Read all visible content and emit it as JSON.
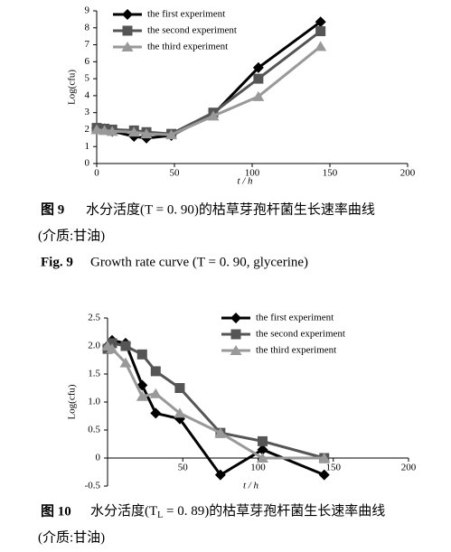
{
  "chart_data": [
    {
      "type": "line",
      "ylabel": "Log(cfu)",
      "xlabel": "t / h",
      "x": [
        0,
        5,
        10,
        24,
        32,
        48,
        75,
        104,
        144
      ],
      "series": [
        {
          "name": "the first experiment",
          "color": "#000000",
          "marker": "diamond",
          "values": [
            2.1,
            2.05,
            1.9,
            1.6,
            1.5,
            1.65,
            2.9,
            5.65,
            8.35
          ]
        },
        {
          "name": "the second experiment",
          "color": "#555555",
          "marker": "square",
          "values": [
            2.1,
            2.05,
            2.0,
            1.95,
            1.85,
            1.75,
            3.0,
            5.0,
            7.8
          ]
        },
        {
          "name": "the third experiment",
          "color": "#999999",
          "marker": "triangle",
          "values": [
            2.0,
            1.95,
            1.9,
            1.85,
            1.75,
            1.7,
            2.8,
            3.95,
            6.9
          ]
        }
      ],
      "xlim": [
        0,
        200
      ],
      "xticks": [
        0,
        50,
        100,
        150,
        200
      ],
      "ylim": [
        0,
        9
      ],
      "yticks": [
        0,
        1,
        2,
        3,
        4,
        5,
        6,
        7,
        8,
        9
      ],
      "legend": "upper left"
    },
    {
      "type": "line",
      "ylabel": "Log(cfu)",
      "xlabel": "t / h",
      "x": [
        0,
        3,
        12,
        23,
        32,
        48,
        75,
        103,
        144
      ],
      "series": [
        {
          "name": "the first experiment",
          "color": "#000000",
          "marker": "diamond",
          "values": [
            2.0,
            2.1,
            2.05,
            1.3,
            0.8,
            0.7,
            -0.3,
            0.15,
            -0.3
          ]
        },
        {
          "name": "the second experiment",
          "color": "#555555",
          "marker": "square",
          "values": [
            1.95,
            2.05,
            2.0,
            1.85,
            1.55,
            1.25,
            0.45,
            0.3,
            0
          ]
        },
        {
          "name": "the third experiment",
          "color": "#999999",
          "marker": "triangle",
          "values": [
            2.0,
            1.95,
            1.7,
            1.1,
            1.15,
            0.8,
            0.45,
            0,
            0
          ]
        }
      ],
      "xlim": [
        0,
        200
      ],
      "xticks": [
        50,
        100,
        150,
        200
      ],
      "ylim": [
        -0.5,
        2.5
      ],
      "yticks": [
        -0.5,
        0,
        0.5,
        {
          "value": 1,
          "label": "1.0"
        },
        1.5,
        {
          "value": 2,
          "label": "2.0"
        },
        2.5
      ],
      "legend": "upper right"
    }
  ],
  "captions": [
    {
      "label": "图 9",
      "lines": [
        "水分活度(T = 0. 90)的枯草芽孢杆菌生长速率曲线",
        "(介质:甘油)"
      ],
      "en_label": "Fig. 9",
      "en_text": "Growth rate curve (T = 0. 90, glycerine)"
    },
    {
      "label": "图 10",
      "parts": [
        "水分活度(T",
        "L",
        " = 0. 89)的枯草芽孢杆菌生长速率曲线"
      ],
      "lines": [
        "(介质:甘油)"
      ]
    }
  ]
}
